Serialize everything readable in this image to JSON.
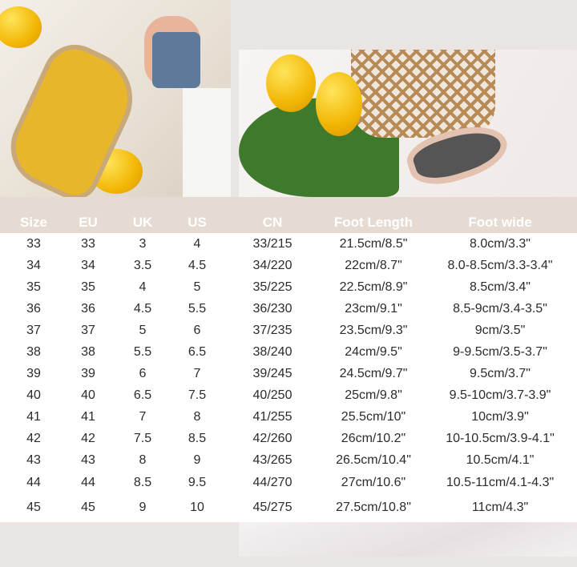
{
  "headers": [
    "Size",
    "EU",
    "UK",
    "US",
    "CN",
    "Foot Length",
    "Foot wide"
  ],
  "rows": [
    [
      "33",
      "33",
      "3",
      "4",
      "33/215",
      "21.5cm/8.5\"",
      "8.0cm/3.3\""
    ],
    [
      "34",
      "34",
      "3.5",
      "4.5",
      "34/220",
      "22cm/8.7\"",
      "8.0-8.5cm/3.3-3.4\""
    ],
    [
      "35",
      "35",
      "4",
      "5",
      "35/225",
      "22.5cm/8.9\"",
      "8.5cm/3.4\""
    ],
    [
      "36",
      "36",
      "4.5",
      "5.5",
      "36/230",
      "23cm/9.1\"",
      "8.5-9cm/3.4-3.5\""
    ],
    [
      "37",
      "37",
      "5",
      "6",
      "37/235",
      "23.5cm/9.3\"",
      "9cm/3.5\""
    ],
    [
      "38",
      "38",
      "5.5",
      "6.5",
      "38/240",
      "24cm/9.5\"",
      "9-9.5cm/3.5-3.7\""
    ],
    [
      "39",
      "39",
      "6",
      "7",
      "39/245",
      "24.5cm/9.7\"",
      "9.5cm/3.7\""
    ],
    [
      "40",
      "40",
      "6.5",
      "7.5",
      "40/250",
      "25cm/9.8\"",
      "9.5-10cm/3.7-3.9\""
    ],
    [
      "41",
      "41",
      "7",
      "8",
      "41/255",
      "25.5cm/10\"",
      "10cm/3.9\""
    ],
    [
      "42",
      "42",
      "7.5",
      "8.5",
      "42/260",
      "26cm/10.2\"",
      "10-10.5cm/3.9-4.1\""
    ],
    [
      "43",
      "43",
      "8",
      "9",
      "43/265",
      "26.5cm/10.4\"",
      "10.5cm/4.1\""
    ],
    [
      "44",
      "44",
      "8.5",
      "9.5",
      "44/270",
      "27cm/10.6\"",
      "10.5-11cm/4.1-4.3\""
    ],
    [
      "45",
      "45",
      "9",
      "10",
      "45/275",
      "27.5cm/10.8\"",
      "11cm/4.3\""
    ]
  ],
  "colors": {
    "background": "#e9e5e2",
    "header_band": "#e6dbd2",
    "header_text": "#ffffff",
    "cell_text": "#2b2b2b"
  }
}
